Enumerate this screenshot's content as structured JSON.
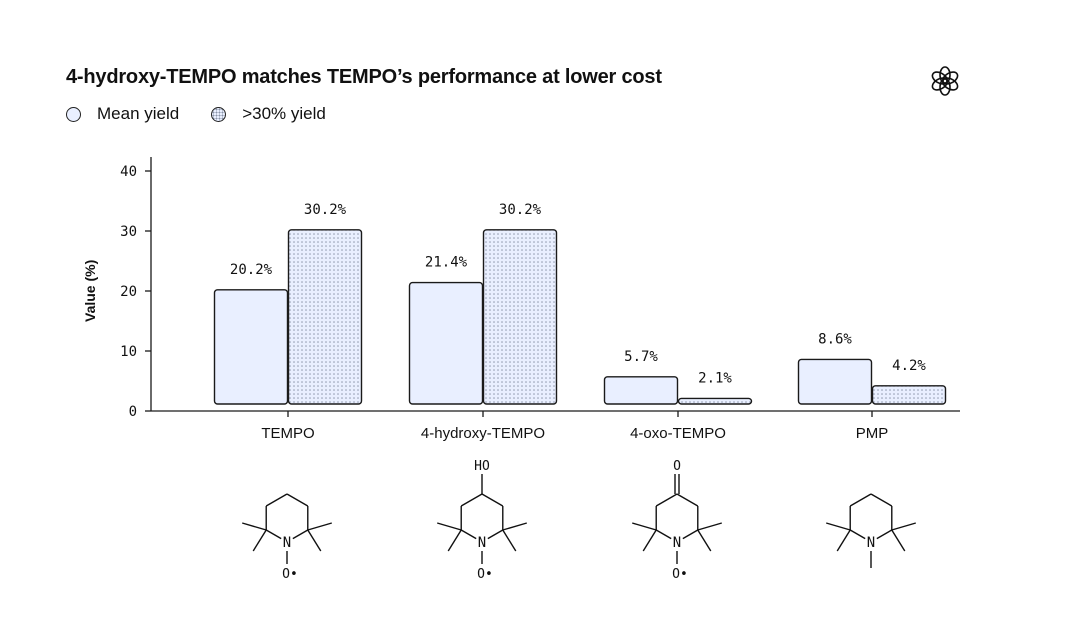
{
  "header": {
    "title": "4-hydroxy-TEMPO matches TEMPO’s performance at lower cost",
    "logo_icon": "openai-logo-icon"
  },
  "legend": [
    {
      "label": "Mean yield",
      "style": "solid"
    },
    {
      "label": ">30% yield",
      "style": "dotted"
    }
  ],
  "chart_data": {
    "type": "bar",
    "title": "4-hydroxy-TEMPO matches TEMPO’s performance at lower cost",
    "xlabel": "",
    "ylabel": "Value (%)",
    "ylim": [
      0,
      40
    ],
    "yticks": [
      0,
      10,
      20,
      30,
      40
    ],
    "grid": false,
    "legend_position": "top-left",
    "categories": [
      "TEMPO",
      "4-hydroxy-TEMPO",
      "4-oxo-TEMPO",
      "PMP"
    ],
    "series": [
      {
        "name": "Mean yield",
        "values": [
          20.2,
          21.4,
          5.7,
          8.6
        ],
        "labels": [
          "20.2%",
          "21.4%",
          "5.7%",
          "8.6%"
        ]
      },
      {
        "name": ">30% yield",
        "values": [
          30.2,
          30.2,
          2.1,
          4.2
        ],
        "labels": [
          "30.2%",
          "30.2%",
          "2.1%",
          "4.2%"
        ]
      }
    ]
  },
  "structures": [
    {
      "category": "TEMPO",
      "top_label": "",
      "n_label": "N",
      "bottom_label": "O•"
    },
    {
      "category": "4-hydroxy-TEMPO",
      "top_label": "HO",
      "n_label": "N",
      "bottom_label": "O•"
    },
    {
      "category": "4-oxo-TEMPO",
      "top_label": "O",
      "n_label": "N",
      "bottom_label": "O•"
    },
    {
      "category": "PMP",
      "top_label": "",
      "n_label": "N",
      "bottom_label": ""
    }
  ],
  "colors": {
    "bar_fill": "#e9efff",
    "bar_stroke": "#1a1a1a",
    "dot_color": "#8a94a8",
    "axis": "#1a1a1a"
  }
}
